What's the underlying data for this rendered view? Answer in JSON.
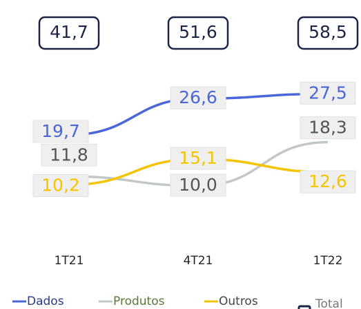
{
  "chart_data": {
    "type": "line",
    "categories": [
      "1T21",
      "4T21",
      "1T22"
    ],
    "ylim": [
      0,
      35
    ],
    "series": [
      {
        "name": "Dados",
        "color": "#4a66d8",
        "values": [
          19.7,
          26.6,
          27.5
        ],
        "value_labels": [
          "19,7",
          "26,6",
          "27,5"
        ]
      },
      {
        "name": "Produtos",
        "color": "#c4c7c8",
        "values": [
          11.8,
          10.0,
          18.3
        ],
        "value_labels": [
          "11,8",
          "10,0",
          "18,3"
        ]
      },
      {
        "name": "Outros",
        "color": "#f5c400",
        "values": [
          10.2,
          15.1,
          12.6
        ],
        "value_labels": [
          "10,2",
          "15,1",
          "12,6"
        ]
      }
    ],
    "total": {
      "name": "Total",
      "color": "#1b2447",
      "values": [
        41.7,
        51.6,
        58.5
      ],
      "value_labels": [
        "41,7",
        "51,6",
        "58,5"
      ]
    }
  }
}
